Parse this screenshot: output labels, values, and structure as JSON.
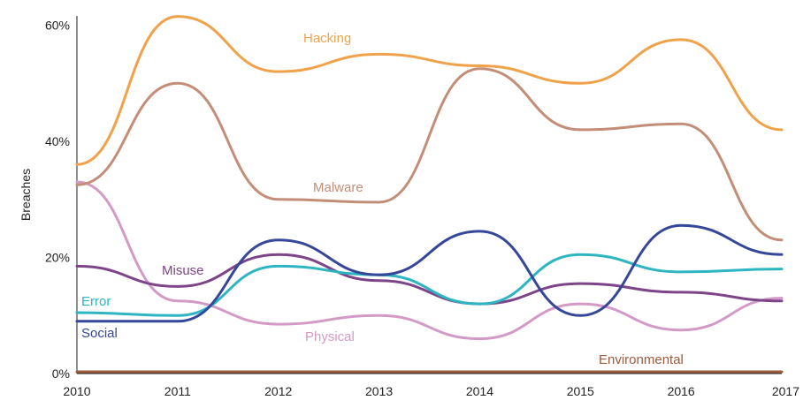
{
  "chart_data": {
    "type": "line",
    "title": "",
    "xlabel": "",
    "ylabel": "Breaches",
    "x": [
      "2010",
      "2011",
      "2012",
      "2013",
      "2014",
      "2015",
      "2016",
      "2017"
    ],
    "y_ticks": [
      "0%",
      "20%",
      "40%",
      "60%"
    ],
    "ylim": [
      0,
      62
    ],
    "grid": false,
    "legend": "inline labels",
    "series": [
      {
        "name": "Hacking",
        "color": "#F0A24A",
        "values": [
          36,
          61.5,
          52,
          55,
          53,
          50,
          57.5,
          42
        ]
      },
      {
        "name": "Malware",
        "color": "#C28E78",
        "values": [
          32.5,
          50,
          30,
          29.5,
          52.5,
          42,
          43,
          23
        ]
      },
      {
        "name": "Social",
        "color": "#36479A",
        "values": [
          9,
          9,
          23,
          17,
          24.5,
          10,
          25.5,
          20.5
        ]
      },
      {
        "name": "Error",
        "color": "#2DB5C2",
        "values": [
          10.5,
          10,
          18.5,
          17,
          12,
          20.5,
          17.5,
          18
        ]
      },
      {
        "name": "Misuse",
        "color": "#7D4487",
        "values": [
          18.5,
          15,
          20.5,
          16,
          12,
          15.5,
          14,
          12.5
        ]
      },
      {
        "name": "Physical",
        "color": "#D39AC6",
        "values": [
          33,
          12.5,
          8.5,
          10,
          6,
          12,
          7.5,
          13
        ]
      },
      {
        "name": "Environmental",
        "color": "#9C5A3C",
        "values": [
          0.3,
          0.3,
          0.3,
          0.3,
          0.3,
          0.3,
          0.3,
          0.3
        ]
      }
    ]
  }
}
